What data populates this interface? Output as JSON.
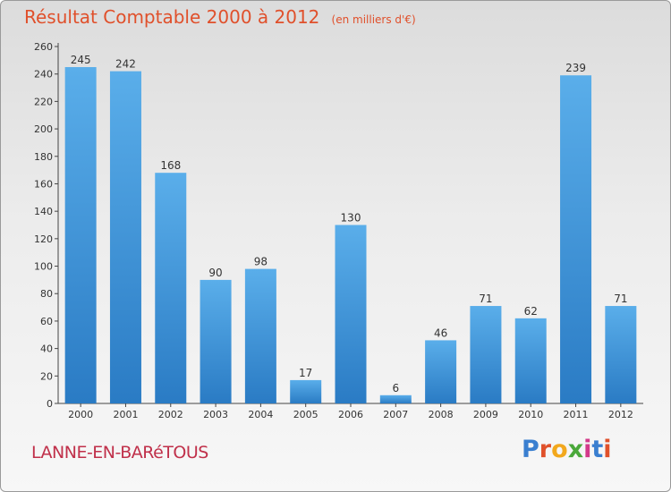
{
  "header": {
    "title": "Résultat Comptable 2000 à 2012",
    "subtitle": "(en milliers d'€)"
  },
  "footer": {
    "place": "LANNE-EN-BARéTOUS",
    "logo_text": "Proxiti"
  },
  "chart_data": {
    "type": "bar",
    "title": "Résultat Comptable 2000 à 2012",
    "subtitle": "(en milliers d'€)",
    "xlabel": "",
    "ylabel": "",
    "categories": [
      "2000",
      "2001",
      "2002",
      "2003",
      "2004",
      "2005",
      "2006",
      "2007",
      "2008",
      "2009",
      "2010",
      "2011",
      "2012"
    ],
    "values": [
      245,
      242,
      168,
      90,
      98,
      17,
      130,
      6,
      46,
      71,
      62,
      239,
      71
    ],
    "ylim": [
      0,
      260
    ],
    "yticks": [
      0,
      20,
      40,
      60,
      80,
      100,
      120,
      140,
      160,
      180,
      200,
      220,
      240,
      260
    ],
    "grid": false,
    "legend": "none",
    "colors": {
      "bar_top": "#5aaeea",
      "bar_bottom": "#2a7bc4",
      "title": "#e0502b",
      "place": "#c0304a"
    }
  }
}
